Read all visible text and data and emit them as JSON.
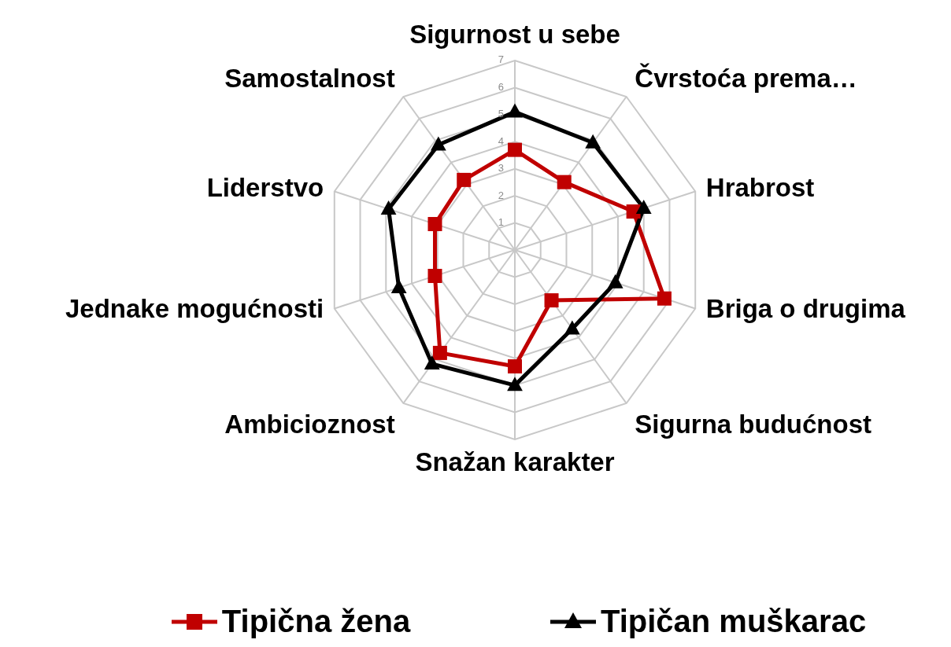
{
  "chart_data": {
    "type": "radar",
    "categories": [
      "Sigurnost u sebe",
      "Čvrstoća prema…",
      "Hrabrost",
      "Briga o drugima",
      "Sigurna budućnost",
      "Snažan karakter",
      "Ambicioznost",
      "Jednake mogućnosti",
      "Liderstvo",
      "Samostalnost"
    ],
    "series": [
      {
        "name": "Tipična žena",
        "color": "#c00000",
        "marker": "square",
        "values": [
          3.7,
          3.1,
          4.6,
          5.8,
          2.3,
          4.3,
          4.7,
          3.1,
          3.1,
          3.2
        ]
      },
      {
        "name": "Tipičan muškarac",
        "color": "#000000",
        "marker": "triangle",
        "values": [
          5.1,
          4.9,
          5.0,
          3.9,
          3.6,
          5.0,
          5.2,
          4.5,
          4.9,
          4.8
        ]
      }
    ],
    "ylim": [
      0,
      7
    ],
    "yticks": [
      1,
      2,
      3,
      4,
      5,
      6,
      7
    ],
    "grid": true,
    "legend": "bottom"
  }
}
